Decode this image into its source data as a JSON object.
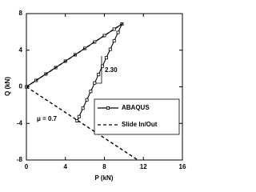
{
  "chart_data": {
    "type": "line",
    "x_label": "P (kN)",
    "y_label": "Q (kN)",
    "xlim": [
      0,
      16
    ],
    "xticks": [
      0,
      4,
      8,
      12,
      16
    ],
    "ylim": [
      -8,
      8
    ],
    "yticks": [
      -8,
      -4,
      0,
      4,
      8
    ],
    "annotations": [
      "2.30",
      "μ = 0.7"
    ],
    "series": [
      {
        "name": "ABAQUS",
        "color": "#000000",
        "dash": false,
        "markers": true,
        "x": [
          0,
          1,
          2,
          3,
          4,
          5,
          6,
          7,
          8,
          9,
          9.8,
          9.4,
          9,
          8.6,
          8.2,
          7.8,
          7.4,
          7,
          6.6,
          6.2,
          5.8,
          5.4,
          5.2
        ],
        "values": [
          0,
          0.7,
          1.4,
          2.1,
          2.8,
          3.5,
          4.2,
          4.9,
          5.6,
          6.3,
          6.86,
          5.94,
          5.02,
          4.1,
          3.18,
          2.26,
          1.34,
          0.42,
          -0.5,
          -1.42,
          -2.34,
          -3.26,
          -3.72
        ]
      },
      {
        "name": "Slide In/Out",
        "color": "#000000",
        "dash": true,
        "markers": false,
        "x": [
          0,
          10,
          10,
          0,
          11.43
        ],
        "values": [
          0,
          7,
          null,
          0,
          -8
        ]
      }
    ]
  }
}
